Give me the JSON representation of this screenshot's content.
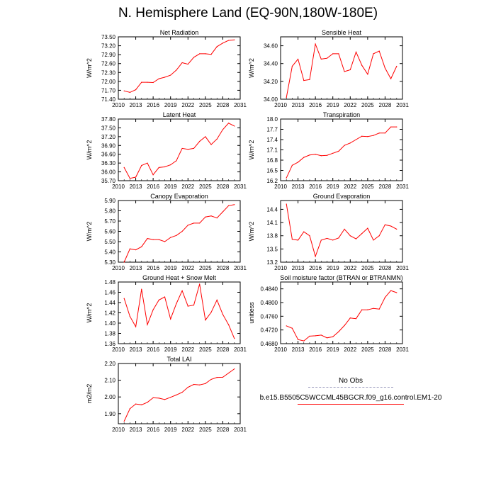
{
  "title": "N. Hemisphere Land (EQ-90N,180W-180E)",
  "colors": {
    "model": "#ff0000",
    "obs": "#9999bb"
  },
  "legend": {
    "obs_label": "No Obs",
    "model_label": "b.e15.B5505C5WCCML45BGCR.f09_g16.control.EM1-20"
  },
  "chart_data": [
    {
      "type": "line",
      "title": "Net Radiation",
      "ylabel": "W/m^2",
      "xlim": [
        2010,
        2031
      ],
      "xticks": [
        2010,
        2013,
        2016,
        2019,
        2022,
        2025,
        2028,
        2031
      ],
      "ylim": [
        71.4,
        73.5
      ],
      "yticks": [
        "71.40",
        "71.70",
        "72.00",
        "72.30",
        "72.60",
        "72.90",
        "73.20",
        "73.50"
      ],
      "x": [
        2011,
        2012,
        2013,
        2014,
        2015,
        2016,
        2017,
        2018,
        2019,
        2020,
        2021,
        2022,
        2023,
        2024,
        2025,
        2026,
        2027,
        2028,
        2029,
        2030
      ],
      "series": [
        {
          "name": "b.e15.B5505C5WCCML45BGCR.f09_g16.control.EM1-20",
          "values": [
            71.68,
            71.63,
            71.72,
            71.97,
            71.97,
            71.96,
            72.09,
            72.14,
            72.21,
            72.38,
            72.63,
            72.58,
            72.81,
            72.93,
            72.93,
            72.91,
            73.17,
            73.29,
            73.38,
            73.4
          ]
        }
      ]
    },
    {
      "type": "line",
      "title": "Sensible Heat",
      "ylabel": "W/m^2",
      "xlim": [
        2010,
        2031
      ],
      "xticks": [
        2010,
        2013,
        2016,
        2019,
        2022,
        2025,
        2028,
        2031
      ],
      "ylim": [
        34.0,
        34.7
      ],
      "yticks": [
        "34.00",
        "34.20",
        "34.40",
        "34.60"
      ],
      "x": [
        2011,
        2012,
        2013,
        2014,
        2015,
        2016,
        2017,
        2018,
        2019,
        2020,
        2021,
        2022,
        2023,
        2024,
        2025,
        2026,
        2027,
        2028,
        2029,
        2030
      ],
      "series": [
        {
          "name": "b.e15.B5505C5WCCML45BGCR.f09_g16.control.EM1-20",
          "values": [
            34.02,
            34.37,
            34.45,
            34.21,
            34.22,
            34.62,
            34.45,
            34.46,
            34.51,
            34.51,
            34.31,
            34.33,
            34.53,
            34.38,
            34.28,
            34.51,
            34.54,
            34.35,
            34.23,
            34.37
          ]
        }
      ]
    },
    {
      "type": "line",
      "title": "Latent Heat",
      "ylabel": "W/m^2",
      "xlim": [
        2010,
        2031
      ],
      "xticks": [
        2010,
        2013,
        2016,
        2019,
        2022,
        2025,
        2028,
        2031
      ],
      "ylim": [
        35.7,
        37.8
      ],
      "yticks": [
        "35.70",
        "36.00",
        "36.30",
        "36.60",
        "36.90",
        "37.20",
        "37.50",
        "37.80"
      ],
      "x": [
        2011,
        2012,
        2013,
        2014,
        2015,
        2016,
        2017,
        2018,
        2019,
        2020,
        2021,
        2022,
        2023,
        2024,
        2025,
        2026,
        2027,
        2028,
        2029,
        2030
      ],
      "series": [
        {
          "name": "b.e15.B5505C5WCCML45BGCR.f09_g16.control.EM1-20",
          "values": [
            36.15,
            35.78,
            35.82,
            36.22,
            36.3,
            35.9,
            36.15,
            36.17,
            36.24,
            36.38,
            36.8,
            36.77,
            36.8,
            37.04,
            37.2,
            36.93,
            37.12,
            37.44,
            37.66,
            37.56
          ]
        }
      ]
    },
    {
      "type": "line",
      "title": "Transpiration",
      "ylabel": "W/m^2",
      "xlim": [
        2010,
        2031
      ],
      "xticks": [
        2010,
        2013,
        2016,
        2019,
        2022,
        2025,
        2028,
        2031
      ],
      "ylim": [
        16.2,
        18.0
      ],
      "yticks": [
        "16.2",
        "16.5",
        "16.8",
        "17.1",
        "17.4",
        "17.7",
        "18.0"
      ],
      "x": [
        2011,
        2012,
        2013,
        2014,
        2015,
        2016,
        2017,
        2018,
        2019,
        2020,
        2021,
        2022,
        2023,
        2024,
        2025,
        2026,
        2027,
        2028,
        2029,
        2030
      ],
      "series": [
        {
          "name": "b.e15.B5505C5WCCML45BGCR.f09_g16.control.EM1-20",
          "values": [
            16.28,
            16.65,
            16.74,
            16.88,
            16.95,
            16.97,
            16.93,
            16.94,
            17.0,
            17.06,
            17.23,
            17.3,
            17.4,
            17.5,
            17.49,
            17.52,
            17.59,
            17.59,
            17.77,
            17.77
          ]
        }
      ]
    },
    {
      "type": "line",
      "title": "Canopy Evaporation",
      "ylabel": "W/m^2",
      "xlim": [
        2010,
        2031
      ],
      "xticks": [
        2010,
        2013,
        2016,
        2019,
        2022,
        2025,
        2028,
        2031
      ],
      "ylim": [
        5.3,
        5.9
      ],
      "yticks": [
        "5.30",
        "5.40",
        "5.50",
        "5.60",
        "5.70",
        "5.80",
        "5.90"
      ],
      "x": [
        2011,
        2012,
        2013,
        2014,
        2015,
        2016,
        2017,
        2018,
        2019,
        2020,
        2021,
        2022,
        2023,
        2024,
        2025,
        2026,
        2027,
        2028,
        2029,
        2030
      ],
      "series": [
        {
          "name": "b.e15.B5505C5WCCML45BGCR.f09_g16.control.EM1-20",
          "values": [
            5.3,
            5.43,
            5.42,
            5.45,
            5.53,
            5.52,
            5.52,
            5.5,
            5.54,
            5.56,
            5.6,
            5.66,
            5.68,
            5.68,
            5.74,
            5.75,
            5.73,
            5.79,
            5.85,
            5.86
          ]
        }
      ]
    },
    {
      "type": "line",
      "title": "Ground Evaporation",
      "ylabel": "W/m^2",
      "xlim": [
        2010,
        2031
      ],
      "xticks": [
        2010,
        2013,
        2016,
        2019,
        2022,
        2025,
        2028,
        2031
      ],
      "ylim": [
        13.2,
        14.6
      ],
      "yticks": [
        "13.2",
        "13.5",
        "13.8",
        "14.1",
        "14.4"
      ],
      "x": [
        2011,
        2012,
        2013,
        2014,
        2015,
        2016,
        2017,
        2018,
        2019,
        2020,
        2021,
        2022,
        2023,
        2024,
        2025,
        2026,
        2027,
        2028,
        2029,
        2030
      ],
      "series": [
        {
          "name": "b.e15.B5505C5WCCML45BGCR.f09_g16.control.EM1-20",
          "values": [
            14.52,
            13.72,
            13.7,
            13.89,
            13.8,
            13.33,
            13.7,
            13.74,
            13.7,
            13.75,
            13.95,
            13.8,
            13.73,
            13.85,
            13.97,
            13.7,
            13.8,
            14.05,
            14.02,
            13.95
          ]
        }
      ]
    },
    {
      "type": "line",
      "title": "Ground Heat + Snow Melt",
      "ylabel": "W/m^2",
      "xlim": [
        2010,
        2031
      ],
      "xticks": [
        2010,
        2013,
        2016,
        2019,
        2022,
        2025,
        2028,
        2031
      ],
      "ylim": [
        1.36,
        1.48
      ],
      "yticks": [
        "1.36",
        "1.38",
        "1.40",
        "1.42",
        "1.44",
        "1.46",
        "1.48"
      ],
      "x": [
        2011,
        2012,
        2013,
        2014,
        2015,
        2016,
        2017,
        2018,
        2019,
        2020,
        2021,
        2022,
        2023,
        2024,
        2025,
        2026,
        2027,
        2028,
        2029,
        2030
      ],
      "series": [
        {
          "name": "b.e15.B5505C5WCCML45BGCR.f09_g16.control.EM1-20",
          "values": [
            1.448,
            1.413,
            1.393,
            1.466,
            1.397,
            1.426,
            1.445,
            1.451,
            1.408,
            1.438,
            1.463,
            1.433,
            1.435,
            1.476,
            1.406,
            1.421,
            1.445,
            1.417,
            1.397,
            1.37
          ]
        }
      ]
    },
    {
      "type": "line",
      "title": "Soil moisture factor (BTRAN or BTRANMN)",
      "ylabel": "unitless",
      "xlim": [
        2010,
        2031
      ],
      "xticks": [
        2010,
        2013,
        2016,
        2019,
        2022,
        2025,
        2028,
        2031
      ],
      "ylim": [
        0.468,
        0.486
      ],
      "yticks": [
        "0.4680",
        "0.4720",
        "0.4760",
        "0.4800",
        "0.4840"
      ],
      "x": [
        2011,
        2012,
        2013,
        2014,
        2015,
        2016,
        2017,
        2018,
        2019,
        2020,
        2021,
        2022,
        2023,
        2024,
        2025,
        2026,
        2027,
        2028,
        2029,
        2030
      ],
      "series": [
        {
          "name": "b.e15.B5505C5WCCML45BGCR.f09_g16.control.EM1-20",
          "values": [
            0.4732,
            0.4725,
            0.4692,
            0.4688,
            0.4702,
            0.4703,
            0.4705,
            0.4697,
            0.47,
            0.4715,
            0.4733,
            0.4755,
            0.4753,
            0.4779,
            0.4779,
            0.4783,
            0.4781,
            0.4815,
            0.4835,
            0.4829
          ]
        }
      ]
    },
    {
      "type": "line",
      "title": "Total LAI",
      "ylabel": "m2/m2",
      "xlim": [
        2010,
        2031
      ],
      "xticks": [
        2010,
        2013,
        2016,
        2019,
        2022,
        2025,
        2028,
        2031
      ],
      "ylim": [
        1.84,
        2.2
      ],
      "yticks": [
        "1.90",
        "2.00",
        "2.10",
        "2.20"
      ],
      "x": [
        2011,
        2012,
        2013,
        2014,
        2015,
        2016,
        2017,
        2018,
        2019,
        2020,
        2021,
        2022,
        2023,
        2024,
        2025,
        2026,
        2027,
        2028,
        2029,
        2030
      ],
      "series": [
        {
          "name": "b.e15.B5505C5WCCML45BGCR.f09_g16.control.EM1-20",
          "values": [
            1.855,
            1.93,
            1.958,
            1.953,
            1.968,
            1.995,
            1.993,
            1.985,
            1.998,
            2.012,
            2.028,
            2.058,
            2.075,
            2.072,
            2.08,
            2.105,
            2.117,
            2.118,
            2.143,
            2.168
          ]
        }
      ]
    }
  ]
}
